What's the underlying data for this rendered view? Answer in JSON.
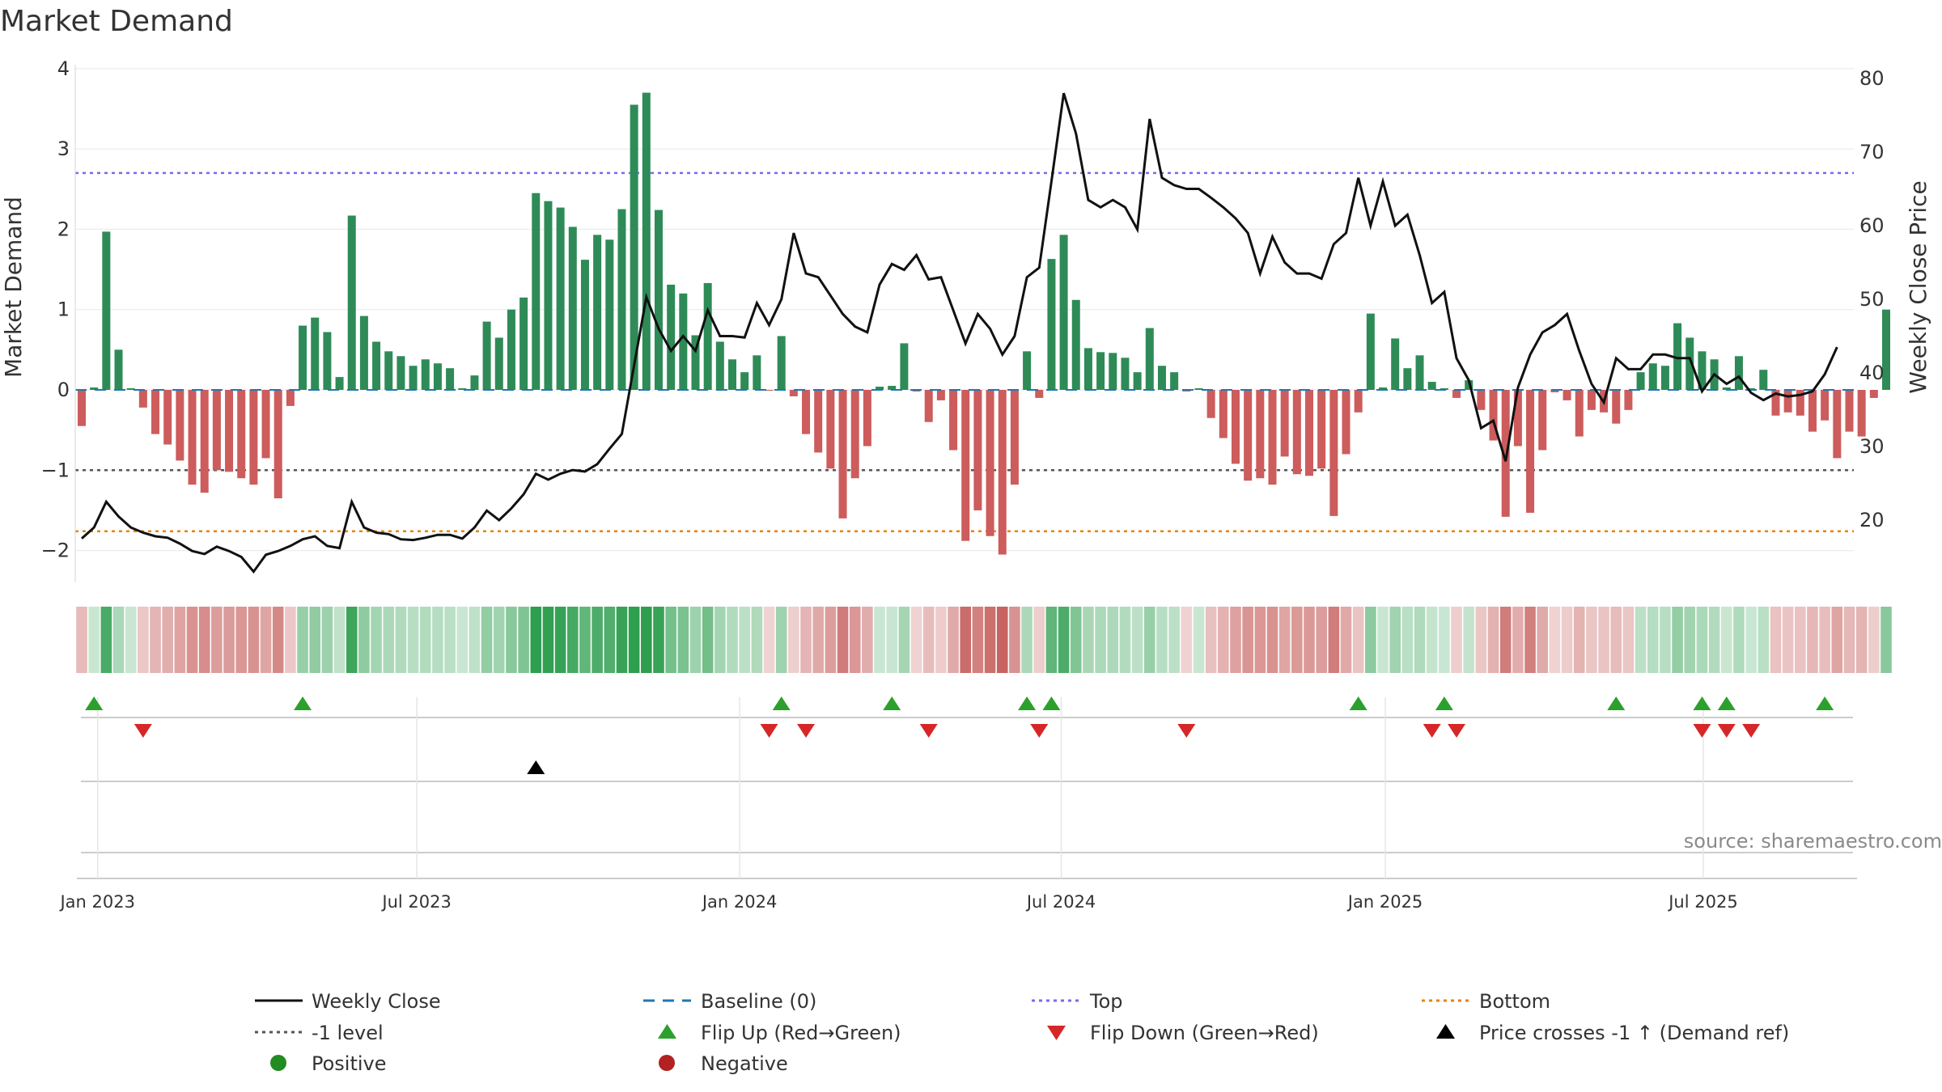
{
  "chart_data": {
    "type": "bar+line",
    "title": "Market Demand",
    "ylabel_left": "Market Demand",
    "ylabel_right": "Weekly Close Price",
    "ylim_left": [
      -2.4,
      4.0
    ],
    "ylim_right": [
      12,
      82
    ],
    "yticks_left": [
      -2,
      -1,
      0,
      1,
      2,
      3,
      4
    ],
    "yticks_right": [
      20,
      30,
      40,
      50,
      60,
      70,
      80
    ],
    "x_tick_labels": [
      "Jan 2023",
      "Jul 2023",
      "Jan 2024",
      "Jul 2024",
      "Jan 2025",
      "Jul 2025"
    ],
    "x_tick_week_index": [
      1.3,
      27.3,
      53.6,
      79.8,
      106.2,
      132.1
    ],
    "reference_lines": {
      "top": 2.7,
      "minus_one": -1.0,
      "bottom": -1.76,
      "baseline": 0
    },
    "demand": [
      -0.45,
      0.03,
      1.97,
      0.5,
      0.02,
      -0.22,
      -0.55,
      -0.68,
      -0.88,
      -1.18,
      -1.28,
      -1.0,
      -1.02,
      -1.1,
      -1.18,
      -0.85,
      -1.35,
      -0.2,
      0.8,
      0.9,
      0.72,
      0.16,
      2.17,
      0.92,
      0.6,
      0.48,
      0.42,
      0.3,
      0.38,
      0.33,
      0.27,
      0.02,
      0.18,
      0.85,
      0.65,
      1.0,
      1.15,
      2.45,
      2.35,
      2.27,
      2.03,
      1.62,
      1.93,
      1.87,
      2.25,
      3.55,
      3.7,
      2.24,
      1.31,
      1.2,
      0.68,
      1.33,
      0.6,
      0.38,
      0.22,
      0.43,
      -0.01,
      0.67,
      -0.08,
      -0.55,
      -0.78,
      -0.98,
      -1.6,
      -1.1,
      -0.7,
      0.04,
      0.05,
      0.58,
      -0.02,
      -0.4,
      -0.13,
      -0.75,
      -1.88,
      -1.5,
      -1.82,
      -2.05,
      -1.18,
      0.48,
      -0.1,
      1.63,
      1.93,
      1.12,
      0.52,
      0.47,
      0.46,
      0.4,
      0.22,
      0.77,
      0.3,
      0.22,
      -0.02,
      0.02,
      -0.35,
      -0.6,
      -0.92,
      -1.13,
      -1.1,
      -1.18,
      -0.83,
      -1.05,
      -1.07,
      -0.98,
      -1.57,
      -0.8,
      -0.28,
      0.95,
      0.03,
      0.64,
      0.27,
      0.43,
      0.1,
      0.02,
      -0.1,
      0.12,
      -0.25,
      -0.63,
      -1.58,
      -0.7,
      -1.53,
      -0.75,
      -0.03,
      -0.13,
      -0.58,
      -0.25,
      -0.28,
      -0.42,
      -0.25,
      0.22,
      0.33,
      0.3,
      0.83,
      0.65,
      0.48,
      0.38,
      0.03,
      0.42,
      0.02,
      0.25,
      -0.32,
      -0.28,
      -0.32,
      -0.52,
      -0.38,
      -0.85,
      -0.52,
      -0.58,
      -0.1,
      1.0
    ],
    "weekly_close": [
      17.5,
      19,
      22.5,
      20.5,
      19,
      18.3,
      17.8,
      17.6,
      16.8,
      15.8,
      15.4,
      16.4,
      15.8,
      15,
      13,
      15.3,
      15.8,
      16.5,
      17.4,
      17.8,
      16.5,
      16.2,
      22.5,
      19,
      18.3,
      18.1,
      17.4,
      17.3,
      17.6,
      18,
      18,
      17.5,
      19,
      21.3,
      20,
      21.6,
      23.5,
      26.3,
      25.5,
      26.3,
      26.8,
      26.6,
      27.6,
      29.7,
      31.7,
      41,
      50.3,
      46,
      43,
      45,
      43,
      48.5,
      45,
      45,
      44.8,
      49.5,
      46.5,
      50,
      59,
      53.5,
      53,
      50.5,
      48,
      46.3,
      45.5,
      52,
      54.8,
      54,
      56,
      52.7,
      53,
      48.5,
      44,
      48,
      46,
      42.5,
      45,
      53,
      54.3,
      66,
      78,
      72.5,
      63.5,
      62.5,
      63.5,
      62.5,
      59.5,
      74.5,
      66.5,
      65.5,
      65,
      65,
      63.8,
      62.5,
      61,
      59,
      53.5,
      58.5,
      55,
      53.5,
      53.5,
      52.8,
      57.5,
      59,
      66.5,
      60,
      66,
      60,
      61.5,
      56,
      49.5,
      51,
      42,
      39,
      32.5,
      33.5,
      28,
      38,
      42.5,
      45.5,
      46.5,
      48,
      43,
      38.5,
      36,
      42,
      40.5,
      40.5,
      42.5,
      42.5,
      42,
      42,
      37.5,
      39.8,
      38.5,
      39.5,
      37.3,
      36.3,
      37.2,
      36.8,
      37,
      37.5,
      39.8,
      43.5
    ],
    "flip_up_weeks": [
      1,
      18,
      57,
      66,
      77,
      79,
      104,
      111,
      125,
      132,
      134,
      142
    ],
    "flip_down_weeks": [
      5,
      56,
      59,
      69,
      78,
      90,
      110,
      112,
      132,
      134,
      136
    ],
    "price_cross_weeks": [
      37
    ],
    "source": "source: sharemaestro.com",
    "legend": [
      "Weekly Close",
      "Baseline (0)",
      "Top",
      "Bottom",
      "-1 level",
      "Flip Up (Red→Green)",
      "Flip Down (Green→Red)",
      "Price crosses -1 ↑ (Demand ref)",
      "Positive",
      "Negative"
    ]
  },
  "colors": {
    "positive": "#2e8b57",
    "negative": "#cd5c5c",
    "close_line": "#111111",
    "baseline": "#1f77b4",
    "top": "#7b68ee",
    "minus_one": "#555555",
    "bottom": "#e8820c",
    "flip_up": "#2ca02c",
    "flip_down": "#d62728",
    "cross": "#000000",
    "positive_dot": "#228b22",
    "negative_dot": "#b22222"
  }
}
